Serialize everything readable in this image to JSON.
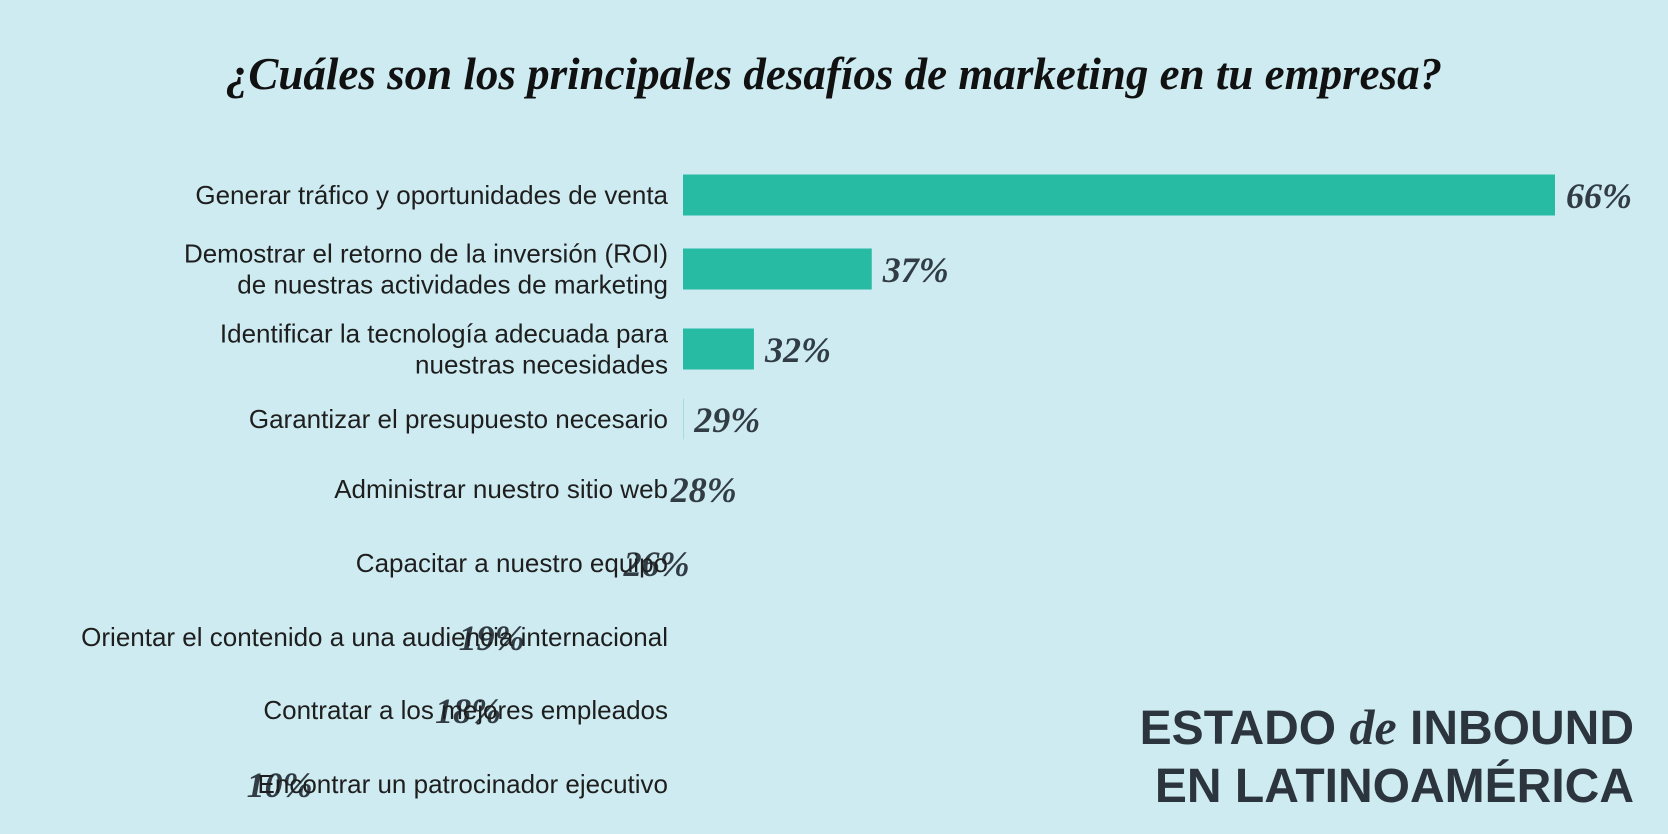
{
  "chart_data": {
    "type": "bar",
    "orientation": "horizontal",
    "title": "¿Cuáles son los principales desafíos de marketing en tu empresa?",
    "categories": [
      [
        "Generar tráfico y oportunidades de venta"
      ],
      [
        "Demostrar el retorno de la inversión (ROI)",
        "de nuestras actividades de marketing"
      ],
      [
        "Identificar la tecnología adecuada para",
        "nuestras necesidades"
      ],
      [
        "Garantizar el presupuesto necesario"
      ],
      [
        "Administrar nuestro sitio web"
      ],
      [
        "Capacitar a nuestro equipo"
      ],
      [
        "Orientar el contenido a una audiencia internacional"
      ],
      [
        "Contratar a los mejores empleados"
      ],
      [
        "Encontrar un patrocinador ejecutivo"
      ]
    ],
    "values": [
      66,
      37,
      32,
      29,
      28,
      26,
      19,
      18,
      10
    ],
    "value_labels": [
      "66%",
      "37%",
      "32%",
      "29%",
      "28%",
      "26%",
      "19%",
      "18%",
      "10%"
    ],
    "grid": false,
    "legend": "none",
    "bar_color": "#27bba3"
  },
  "brand": {
    "line1_a": "ESTADO",
    "line1_de": "de",
    "line1_b": "INBOUND",
    "line2": "EN LATINOAMÉRICA"
  },
  "colors": {
    "background": "#cdebf0",
    "bar": "#27bba3",
    "value_text": "#323c45",
    "brand_text": "#2c353d"
  }
}
